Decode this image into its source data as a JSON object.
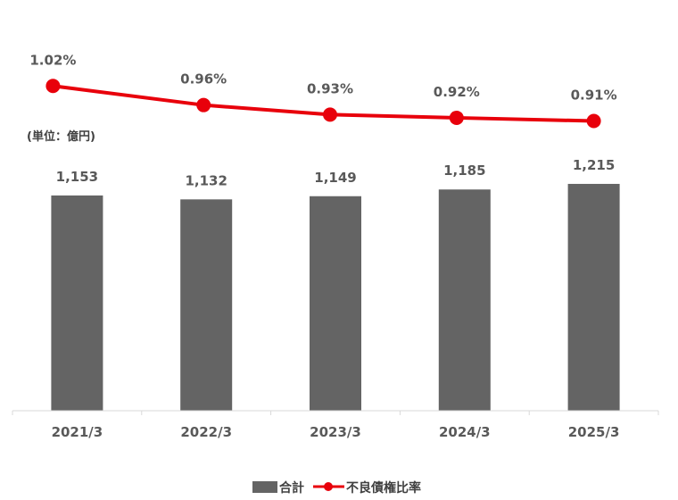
{
  "chart_data": {
    "type": "bar+line",
    "unit_note": "(単位：億円)",
    "categories": [
      "2021/3",
      "2022/3",
      "2023/3",
      "2024/3",
      "2025/3"
    ],
    "series": [
      {
        "name": "合計",
        "type": "bar",
        "values": [
          1153,
          1132,
          1149,
          1185,
          1215
        ],
        "labels": [
          "1,153",
          "1,132",
          "1,149",
          "1,185",
          "1,215"
        ],
        "color": "#646464"
      },
      {
        "name": "不良債権比率",
        "type": "line",
        "values": [
          1.02,
          0.96,
          0.93,
          0.92,
          0.91
        ],
        "labels": [
          "1.02%",
          "0.96%",
          "0.93%",
          "0.92%",
          "0.91%"
        ],
        "color": "#e8000b"
      }
    ],
    "bar_axis_range": [
      0,
      2200
    ],
    "line_axis_range": [
      0.0,
      1.29
    ],
    "grid": false,
    "legend": "bottom-center"
  }
}
